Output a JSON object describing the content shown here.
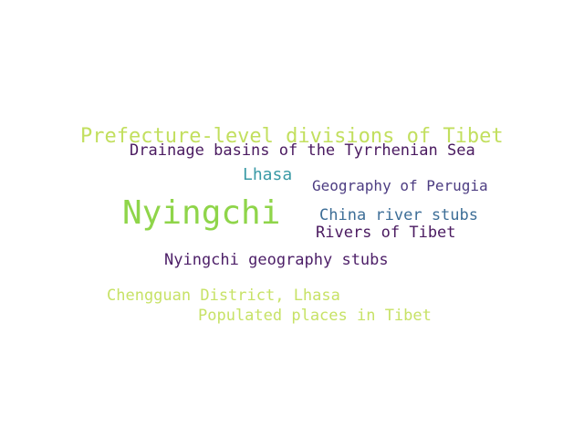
{
  "words": [
    {
      "text": "Prefecture-level divisions of Tibet",
      "color": "#c2df5e"
    },
    {
      "text": "Drainage basins of the Tyrrhenian Sea",
      "color": "#4a1a60"
    },
    {
      "text": "Lhasa",
      "color": "#3a9aa6"
    },
    {
      "text": "Geography of Perugia",
      "color": "#4d3d82"
    },
    {
      "text": "Nyingchi",
      "color": "#8fd54a"
    },
    {
      "text": "China river stubs",
      "color": "#3d6e97"
    },
    {
      "text": "Rivers of Tibet",
      "color": "#4a1a60"
    },
    {
      "text": "Nyingchi geography stubs",
      "color": "#4d1f68"
    },
    {
      "text": "Chengguan District, Lhasa",
      "color": "#c7e266"
    },
    {
      "text": "Populated places in Tibet",
      "color": "#c7e266"
    }
  ]
}
